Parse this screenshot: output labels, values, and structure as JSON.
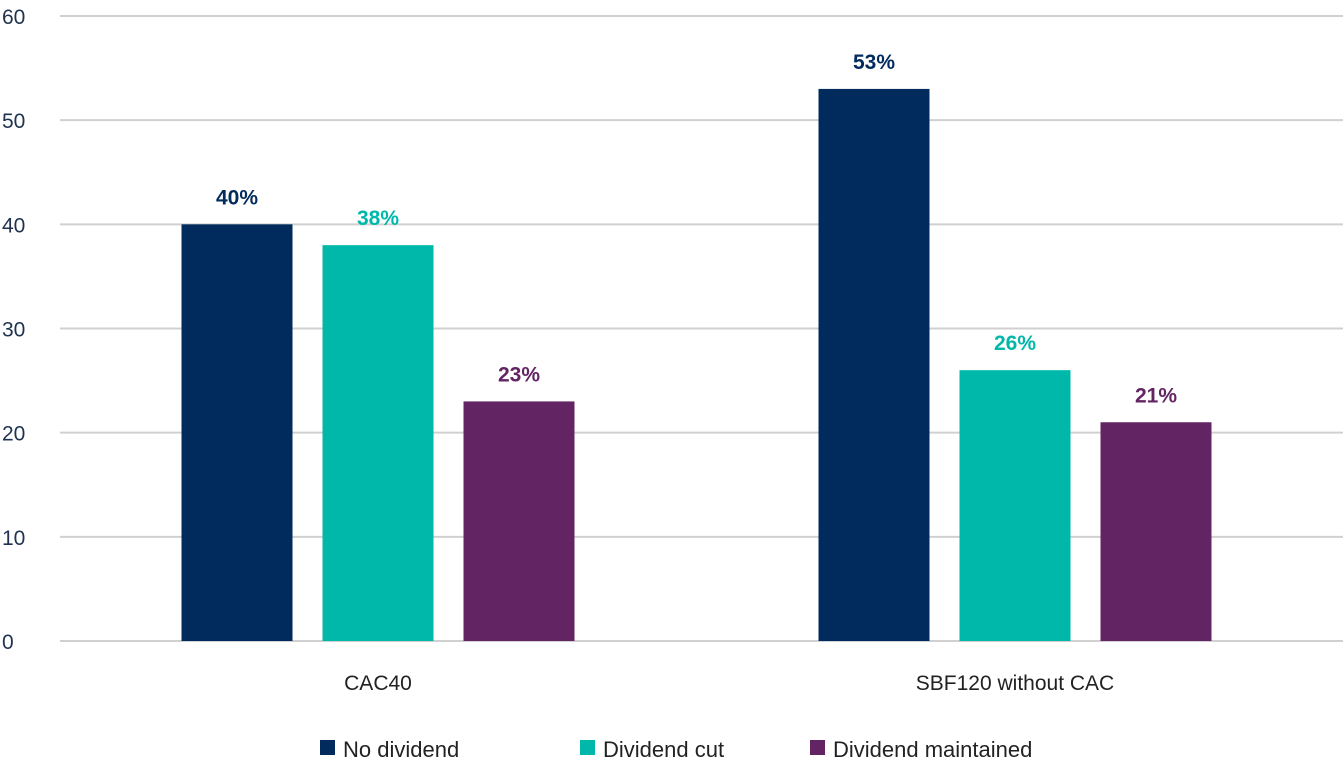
{
  "chart_data": {
    "type": "bar",
    "title": "",
    "xlabel": "",
    "ylabel": "",
    "ylim": [
      0,
      60
    ],
    "yticks": [
      0,
      10,
      20,
      30,
      40,
      50,
      60
    ],
    "grid": true,
    "legend_position": "bottom",
    "categories": [
      "CAC40",
      "SBF120 without CAC"
    ],
    "series": [
      {
        "name": "No dividend",
        "color": "#002b5c",
        "values": [
          40,
          53
        ],
        "labels": [
          "40%",
          "53%"
        ]
      },
      {
        "name": "Dividend cut",
        "color": "#00b8aa",
        "values": [
          38,
          26
        ],
        "labels": [
          "38%",
          "26%"
        ]
      },
      {
        "name": "Dividend maintained",
        "color": "#632463",
        "values": [
          23,
          21
        ],
        "labels": [
          "23%",
          "21%"
        ]
      }
    ]
  }
}
